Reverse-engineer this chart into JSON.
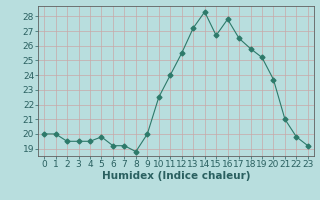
{
  "x": [
    0,
    1,
    2,
    3,
    4,
    5,
    6,
    7,
    8,
    9,
    10,
    11,
    12,
    13,
    14,
    15,
    16,
    17,
    18,
    19,
    20,
    21,
    22,
    23
  ],
  "y": [
    20.0,
    20.0,
    19.5,
    19.5,
    19.5,
    19.8,
    19.2,
    19.2,
    18.8,
    20.0,
    22.5,
    24.0,
    25.5,
    27.2,
    28.3,
    26.7,
    27.8,
    26.5,
    25.8,
    25.2,
    23.7,
    21.0,
    19.8,
    19.2
  ],
  "line_color": "#2d7a6a",
  "marker": "D",
  "marker_size": 2.5,
  "bg_color": "#b8dede",
  "grid_color": "#c8a8a8",
  "xlabel": "Humidex (Indice chaleur)",
  "xlim": [
    -0.5,
    23.5
  ],
  "ylim": [
    18.5,
    28.7
  ],
  "yticks": [
    19,
    20,
    21,
    22,
    23,
    24,
    25,
    26,
    27,
    28
  ],
  "xticks": [
    0,
    1,
    2,
    3,
    4,
    5,
    6,
    7,
    8,
    9,
    10,
    11,
    12,
    13,
    14,
    15,
    16,
    17,
    18,
    19,
    20,
    21,
    22,
    23
  ],
  "tick_label_fontsize": 6.5,
  "xlabel_fontsize": 7.5
}
